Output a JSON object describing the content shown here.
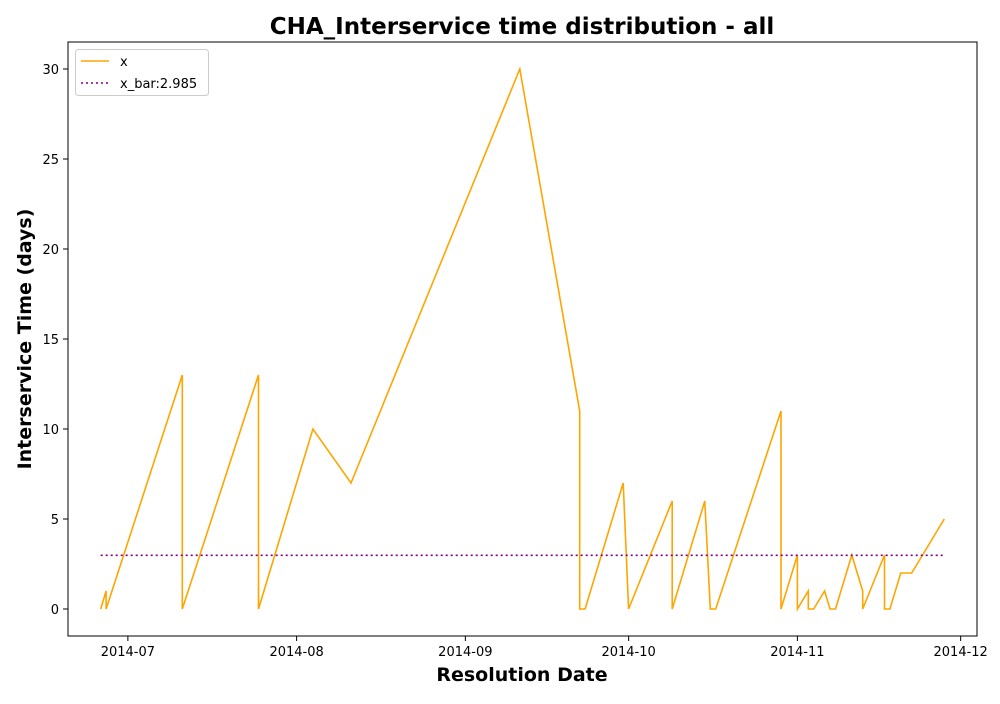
{
  "chart_data": {
    "type": "line",
    "title": "CHA_Interservice time distribution - all",
    "xlabel": "Resolution Date",
    "ylabel": "Interservice Time (days)",
    "x_ticks": [
      "2014-07",
      "2014-08",
      "2014-09",
      "2014-10",
      "2014-11",
      "2014-12"
    ],
    "y_ticks": [
      0,
      5,
      10,
      15,
      20,
      25,
      30
    ],
    "xlim": [
      "2014-06-20",
      "2014-12-04"
    ],
    "ylim": [
      -1.5,
      31.5
    ],
    "legend_position": "upper-left",
    "grid": false,
    "series": [
      {
        "name": "x",
        "color": "#ffa500",
        "style": "solid",
        "points": [
          [
            "2014-06-26",
            0
          ],
          [
            "2014-06-27",
            1
          ],
          [
            "2014-06-27",
            0
          ],
          [
            "2014-07-11",
            13
          ],
          [
            "2014-07-11",
            0
          ],
          [
            "2014-07-25",
            13
          ],
          [
            "2014-07-25",
            0
          ],
          [
            "2014-08-04",
            10
          ],
          [
            "2014-08-11",
            7
          ],
          [
            "2014-09-11",
            30
          ],
          [
            "2014-09-22",
            11
          ],
          [
            "2014-09-22",
            0
          ],
          [
            "2014-09-23",
            0
          ],
          [
            "2014-09-30",
            7
          ],
          [
            "2014-10-01",
            0
          ],
          [
            "2014-10-09",
            6
          ],
          [
            "2014-10-09",
            0
          ],
          [
            "2014-10-15",
            6
          ],
          [
            "2014-10-16",
            0
          ],
          [
            "2014-10-17",
            0
          ],
          [
            "2014-10-29",
            11
          ],
          [
            "2014-10-29",
            0
          ],
          [
            "2014-11-01",
            3
          ],
          [
            "2014-11-01",
            0
          ],
          [
            "2014-11-03",
            1
          ],
          [
            "2014-11-03",
            0
          ],
          [
            "2014-11-04",
            0
          ],
          [
            "2014-11-06",
            1
          ],
          [
            "2014-11-07",
            0
          ],
          [
            "2014-11-08",
            0
          ],
          [
            "2014-11-11",
            3
          ],
          [
            "2014-11-13",
            1
          ],
          [
            "2014-11-13",
            0
          ],
          [
            "2014-11-17",
            3
          ],
          [
            "2014-11-17",
            0
          ],
          [
            "2014-11-18",
            0
          ],
          [
            "2014-11-20",
            2
          ],
          [
            "2014-11-22",
            2
          ],
          [
            "2014-11-28",
            5
          ]
        ]
      },
      {
        "name": "x_bar:2.985",
        "color": "#800080",
        "style": "dotted",
        "points": [
          [
            "2014-06-26",
            2.985
          ],
          [
            "2014-11-28",
            2.985
          ]
        ]
      }
    ]
  }
}
